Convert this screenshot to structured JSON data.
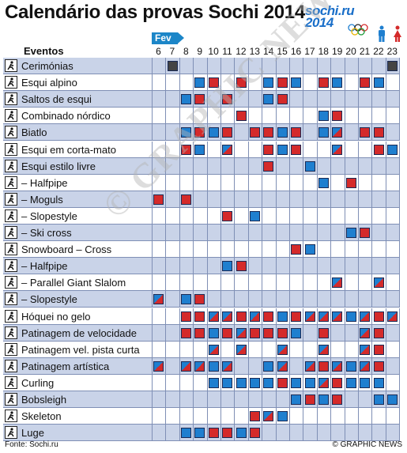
{
  "title": "Calendário das provas Sochi 2014",
  "logo": {
    "line1": "sochi.ru",
    "line2": "2014"
  },
  "month_label": "Fev",
  "events_header": "Eventos",
  "days": [
    6,
    7,
    8,
    9,
    10,
    11,
    12,
    13,
    14,
    15,
    16,
    17,
    18,
    19,
    20,
    21,
    22,
    23
  ],
  "colors": {
    "medal": "#d42a2a",
    "competition": "#1f7fcf",
    "closing": "#444444",
    "row_band": "#c9d3e8",
    "row_white": "#ffffff"
  },
  "rows": [
    {
      "label": "Cerimónias",
      "icon": "ceremony-icon",
      "cells": [
        0,
        2,
        0,
        0,
        0,
        0,
        0,
        0,
        0,
        0,
        0,
        0,
        0,
        0,
        0,
        0,
        0,
        2
      ]
    },
    {
      "label": "Esqui alpino",
      "icon": "alpine-ski-icon",
      "cells": [
        0,
        0,
        0,
        1,
        3,
        0,
        3,
        0,
        1,
        3,
        1,
        0,
        3,
        1,
        0,
        3,
        1,
        0
      ]
    },
    {
      "label": "Saltos de esqui",
      "icon": "ski-jump-icon",
      "cells": [
        0,
        0,
        1,
        3,
        0,
        3,
        0,
        0,
        1,
        3,
        0,
        0,
        0,
        0,
        0,
        0,
        0,
        0
      ]
    },
    {
      "label": "Combinado nórdico",
      "icon": "nordic-combined-icon",
      "cells": [
        0,
        0,
        0,
        0,
        0,
        0,
        3,
        0,
        0,
        0,
        0,
        0,
        1,
        3,
        0,
        0,
        0,
        0
      ]
    },
    {
      "label": "Biatlo",
      "icon": "biathlon-icon",
      "cells": [
        0,
        0,
        1,
        3,
        1,
        3,
        0,
        3,
        3,
        1,
        3,
        0,
        1,
        4,
        0,
        3,
        3,
        0
      ]
    },
    {
      "label": "Esqui em corta-mato",
      "icon": "cross-country-icon",
      "cells": [
        0,
        0,
        3,
        1,
        0,
        4,
        0,
        0,
        3,
        1,
        3,
        0,
        0,
        4,
        0,
        0,
        3,
        1
      ]
    },
    {
      "label": "Esqui estilo livre",
      "icon": "freestyle-icon",
      "cells": [
        0,
        0,
        0,
        0,
        0,
        0,
        0,
        0,
        3,
        0,
        0,
        1,
        0,
        0,
        0,
        0,
        0,
        0
      ]
    },
    {
      "label": "– Halfpipe",
      "icon": "halfpipe-icon",
      "cells": [
        0,
        0,
        0,
        0,
        0,
        0,
        0,
        0,
        0,
        0,
        0,
        0,
        1,
        0,
        3,
        0,
        0,
        0
      ]
    },
    {
      "label": "– Moguls",
      "icon": "moguls-icon",
      "cells": [
        3,
        0,
        3,
        0,
        0,
        0,
        0,
        0,
        0,
        0,
        0,
        0,
        0,
        0,
        0,
        0,
        0,
        0
      ]
    },
    {
      "label": "– Slopestyle",
      "icon": "slopestyle-icon",
      "cells": [
        0,
        0,
        0,
        0,
        0,
        3,
        0,
        1,
        0,
        0,
        0,
        0,
        0,
        0,
        0,
        0,
        0,
        0
      ]
    },
    {
      "label": "– Ski cross",
      "icon": "ski-cross-icon",
      "cells": [
        0,
        0,
        0,
        0,
        0,
        0,
        0,
        0,
        0,
        0,
        0,
        0,
        0,
        0,
        1,
        3,
        0,
        0
      ]
    },
    {
      "label": "Snowboard – Cross",
      "icon": "snowboard-cross-icon",
      "cells": [
        0,
        0,
        0,
        0,
        0,
        0,
        0,
        0,
        0,
        0,
        3,
        1,
        0,
        0,
        0,
        0,
        0,
        0
      ]
    },
    {
      "label": "– Halfpipe",
      "icon": "snowboard-halfpipe-icon",
      "cells": [
        0,
        0,
        0,
        0,
        0,
        1,
        3,
        0,
        0,
        0,
        0,
        0,
        0,
        0,
        0,
        0,
        0,
        0
      ]
    },
    {
      "label": "– Parallel Giant Slalom",
      "icon": "parallel-slalom-icon",
      "cells": [
        0,
        0,
        0,
        0,
        0,
        0,
        0,
        0,
        0,
        0,
        0,
        0,
        0,
        4,
        0,
        0,
        4,
        0
      ]
    },
    {
      "label": "– Slopestyle",
      "icon": "snowboard-slopestyle-icon",
      "cells": [
        4,
        0,
        1,
        3,
        0,
        0,
        0,
        0,
        0,
        0,
        0,
        0,
        0,
        0,
        0,
        0,
        0,
        0
      ]
    },
    {
      "label": "Hóquei no gelo",
      "icon": "ice-hockey-icon",
      "cells": [
        0,
        0,
        3,
        3,
        4,
        4,
        3,
        4,
        3,
        1,
        3,
        4,
        4,
        4,
        1,
        4,
        3,
        4
      ]
    },
    {
      "label": "Patinagem de velocidade",
      "icon": "speed-skating-icon",
      "cells": [
        0,
        0,
        3,
        3,
        1,
        3,
        4,
        3,
        3,
        3,
        1,
        0,
        3,
        0,
        0,
        4,
        3,
        0
      ]
    },
    {
      "label": "Patinagem vel. pista curta",
      "icon": "short-track-icon",
      "cells": [
        0,
        0,
        0,
        0,
        4,
        0,
        4,
        0,
        0,
        4,
        0,
        0,
        4,
        0,
        0,
        4,
        3,
        0
      ]
    },
    {
      "label": "Patinagem artística",
      "icon": "figure-skating-icon",
      "cells": [
        4,
        0,
        4,
        4,
        1,
        4,
        0,
        0,
        1,
        4,
        0,
        4,
        3,
        4,
        1,
        4,
        3,
        0
      ]
    },
    {
      "label": "Curling",
      "icon": "curling-icon",
      "cells": [
        0,
        0,
        0,
        0,
        1,
        1,
        1,
        1,
        1,
        3,
        1,
        1,
        4,
        3,
        1,
        1,
        1,
        0
      ]
    },
    {
      "label": "Bobsleigh",
      "icon": "bobsleigh-icon",
      "cells": [
        0,
        0,
        0,
        0,
        0,
        0,
        0,
        0,
        0,
        0,
        1,
        3,
        1,
        3,
        0,
        0,
        1,
        1
      ]
    },
    {
      "label": "Skeleton",
      "icon": "skeleton-icon",
      "cells": [
        0,
        0,
        0,
        0,
        0,
        0,
        0,
        3,
        4,
        1,
        0,
        0,
        0,
        0,
        0,
        0,
        0,
        0
      ]
    },
    {
      "label": "Luge",
      "icon": "luge-icon",
      "cells": [
        0,
        0,
        1,
        1,
        3,
        3,
        1,
        3,
        0,
        0,
        0,
        0,
        0,
        0,
        0,
        0,
        0,
        0
      ]
    }
  ],
  "source": "Fonte: Sochi.ru",
  "credit": "© GRAPHIC NEWS",
  "watermark": "© GRAPHIC NEWS"
}
